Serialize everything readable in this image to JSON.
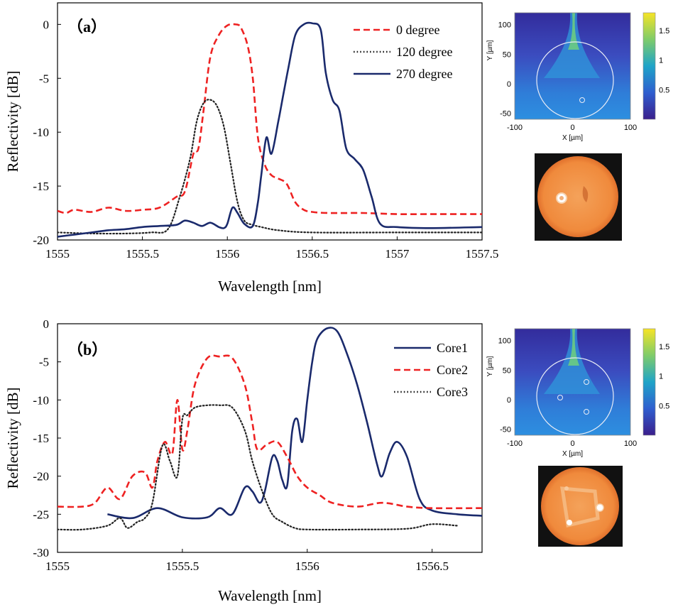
{
  "chart_data": [
    {
      "id": "a",
      "type": "line",
      "panel_label": "（a）",
      "xlabel": "Wavelength  [nm]",
      "ylabel": "Reflectivity [dB]",
      "xlim": [
        1555,
        1557.5
      ],
      "ylim": [
        -20,
        2
      ],
      "xticks": [
        1555,
        1555.5,
        1556,
        1556.5,
        1557,
        1557.5
      ],
      "xtick_labels": [
        "1555",
        "1555.5",
        "1556",
        "1556.5",
        "1557",
        "1557.5"
      ],
      "yticks": [
        0,
        -5,
        -10,
        -15,
        -20
      ],
      "ytick_labels": [
        "0",
        "-5",
        "-10",
        "-15",
        "-20"
      ],
      "legend_position": "top-right",
      "series": [
        {
          "name": "0 degree",
          "style": "dashed",
          "color": "#ee2222",
          "x": [
            1555,
            1555.05,
            1555.1,
            1555.2,
            1555.3,
            1555.4,
            1555.5,
            1555.6,
            1555.7,
            1555.75,
            1555.8,
            1555.83,
            1555.86,
            1555.9,
            1555.95,
            1556.0,
            1556.05,
            1556.08,
            1556.12,
            1556.15,
            1556.18,
            1556.22,
            1556.26,
            1556.3,
            1556.35,
            1556.4,
            1556.45,
            1556.5,
            1556.6,
            1556.8,
            1557,
            1557.2,
            1557.5
          ],
          "y": [
            -17.3,
            -17.5,
            -17.2,
            -17.4,
            -17.0,
            -17.3,
            -17.2,
            -17.0,
            -16.0,
            -15.5,
            -12.0,
            -11.5,
            -8.0,
            -3.0,
            -1.0,
            -0.1,
            0.0,
            -0.3,
            -2.0,
            -5.0,
            -10.5,
            -13.0,
            -14.0,
            -14.3,
            -14.8,
            -16.5,
            -17.2,
            -17.4,
            -17.5,
            -17.5,
            -17.6,
            -17.6,
            -17.6
          ]
        },
        {
          "name": "120 degree",
          "style": "dotted",
          "color": "#222222",
          "x": [
            1555,
            1555.2,
            1555.4,
            1555.55,
            1555.65,
            1555.72,
            1555.78,
            1555.82,
            1555.86,
            1555.9,
            1555.94,
            1555.98,
            1556.02,
            1556.06,
            1556.1,
            1556.15,
            1556.2,
            1556.3,
            1556.5,
            1557,
            1557.5
          ],
          "y": [
            -19.3,
            -19.4,
            -19.4,
            -19.3,
            -19.0,
            -16.0,
            -12.5,
            -9.0,
            -7.3,
            -7.0,
            -7.6,
            -9.5,
            -13.0,
            -16.5,
            -18.2,
            -18.6,
            -18.8,
            -19.1,
            -19.3,
            -19.3,
            -19.3
          ]
        },
        {
          "name": "270 degree",
          "style": "solid",
          "color": "#1a2a6c",
          "x": [
            1555,
            1555.1,
            1555.2,
            1555.3,
            1555.4,
            1555.5,
            1555.6,
            1555.7,
            1555.75,
            1555.8,
            1555.85,
            1555.9,
            1555.95,
            1555.98,
            1556.0,
            1556.03,
            1556.06,
            1556.1,
            1556.15,
            1556.18,
            1556.2,
            1556.23,
            1556.26,
            1556.3,
            1556.33,
            1556.36,
            1556.4,
            1556.45,
            1556.5,
            1556.55,
            1556.58,
            1556.62,
            1556.66,
            1556.7,
            1556.75,
            1556.8,
            1556.85,
            1556.9,
            1557,
            1557.2,
            1557.5
          ],
          "y": [
            -19.7,
            -19.5,
            -19.3,
            -19.1,
            -19.0,
            -18.8,
            -18.7,
            -18.6,
            -18.2,
            -18.4,
            -18.7,
            -18.4,
            -18.8,
            -18.9,
            -18.5,
            -17.0,
            -17.5,
            -18.5,
            -18.7,
            -16.5,
            -14.0,
            -10.5,
            -12.0,
            -9.0,
            -6.5,
            -4.0,
            -1.0,
            0.0,
            0.1,
            -0.5,
            -4.5,
            -7.0,
            -8.0,
            -11.5,
            -12.5,
            -13.5,
            -16.0,
            -18.5,
            -18.8,
            -18.9,
            -18.8
          ]
        }
      ]
    },
    {
      "id": "b",
      "type": "line",
      "panel_label": "（b）",
      "xlabel": "Wavelength  [nm]",
      "ylabel": "Reflectivity [dB]",
      "xlim": [
        1555,
        1556.7
      ],
      "ylim": [
        -30,
        0
      ],
      "xticks": [
        1555,
        1555.5,
        1556,
        1556.5
      ],
      "xtick_labels": [
        "1555",
        "1555.5",
        "1556",
        "1556.5"
      ],
      "yticks": [
        0,
        -5,
        -10,
        -15,
        -20,
        -25,
        -30
      ],
      "ytick_labels": [
        "0",
        "-5",
        "-10",
        "-15",
        "-20",
        "-25",
        "-30"
      ],
      "legend_position": "top-right",
      "series": [
        {
          "name": "Core1",
          "style": "solid",
          "color": "#1a2a6c",
          "x": [
            1555.2,
            1555.3,
            1555.4,
            1555.5,
            1555.6,
            1555.65,
            1555.7,
            1555.75,
            1555.78,
            1555.81,
            1555.83,
            1555.86,
            1555.88,
            1555.9,
            1555.92,
            1555.94,
            1555.96,
            1555.98,
            1556.0,
            1556.02,
            1556.04,
            1556.08,
            1556.12,
            1556.16,
            1556.2,
            1556.24,
            1556.28,
            1556.3,
            1556.33,
            1556.36,
            1556.4,
            1556.45,
            1556.5,
            1556.6,
            1556.7
          ],
          "y": [
            -25.0,
            -25.5,
            -24.2,
            -25.4,
            -25.4,
            -24.2,
            -25.0,
            -21.5,
            -22.0,
            -23.5,
            -22.0,
            -17.5,
            -18.0,
            -20.5,
            -21.2,
            -14.0,
            -12.5,
            -15.5,
            -10.0,
            -5.0,
            -2.0,
            -0.6,
            -1.0,
            -4.0,
            -8.0,
            -13.0,
            -18.5,
            -20.0,
            -17.0,
            -15.5,
            -17.5,
            -23.0,
            -24.5,
            -25.0,
            -25.2
          ]
        },
        {
          "name": "Core2",
          "style": "dashed",
          "color": "#ee2222",
          "x": [
            1555,
            1555.1,
            1555.15,
            1555.2,
            1555.25,
            1555.3,
            1555.35,
            1555.38,
            1555.4,
            1555.43,
            1555.46,
            1555.48,
            1555.5,
            1555.52,
            1555.55,
            1555.6,
            1555.65,
            1555.7,
            1555.75,
            1555.78,
            1555.8,
            1555.84,
            1555.88,
            1555.92,
            1555.96,
            1556.0,
            1556.05,
            1556.1,
            1556.2,
            1556.3,
            1556.4,
            1556.5,
            1556.7
          ],
          "y": [
            -24.0,
            -24.0,
            -23.5,
            -21.5,
            -23.0,
            -20.0,
            -19.5,
            -21.5,
            -18.0,
            -15.5,
            -17.0,
            -10.0,
            -16.5,
            -14.0,
            -8.0,
            -4.5,
            -4.3,
            -4.5,
            -8.0,
            -13.0,
            -16.5,
            -15.8,
            -15.5,
            -17.5,
            -20.0,
            -21.5,
            -22.5,
            -23.5,
            -24.0,
            -23.5,
            -24.0,
            -24.2,
            -24.2
          ]
        },
        {
          "name": "Core3",
          "style": "dotted",
          "color": "#222222",
          "x": [
            1555,
            1555.1,
            1555.2,
            1555.25,
            1555.28,
            1555.32,
            1555.35,
            1555.38,
            1555.42,
            1555.45,
            1555.48,
            1555.5,
            1555.52,
            1555.55,
            1555.6,
            1555.65,
            1555.7,
            1555.75,
            1555.78,
            1555.82,
            1555.86,
            1555.9,
            1555.95,
            1556.0,
            1556.2,
            1556.4,
            1556.5,
            1556.6
          ],
          "y": [
            -27.0,
            -27.0,
            -26.5,
            -25.5,
            -26.8,
            -26.0,
            -25.5,
            -23.5,
            -16.0,
            -18.0,
            -20.0,
            -12.5,
            -12.0,
            -11.0,
            -10.7,
            -10.7,
            -11.0,
            -14.0,
            -18.0,
            -22.0,
            -25.0,
            -26.0,
            -26.8,
            -27.0,
            -27.0,
            -26.9,
            -26.3,
            -26.5
          ]
        }
      ]
    },
    {
      "id": "a-inset",
      "type": "heatmap",
      "xlabel": "X [µm]",
      "ylabel": "Y [µm]",
      "xlim": [
        -100,
        100
      ],
      "ylim": [
        -60,
        120
      ],
      "xtick_labels": [
        "-100",
        "0",
        "100"
      ],
      "ytick_labels": [
        "100",
        "50",
        "0",
        "-50"
      ],
      "colorbar_labels": [
        "1.5",
        "1",
        "0.5"
      ],
      "colorbar_range": [
        0,
        1.8
      ]
    },
    {
      "id": "b-inset",
      "type": "heatmap",
      "xlabel": "X [µm]",
      "ylabel": "Y [µm]",
      "xlim": [
        -100,
        100
      ],
      "ylim": [
        -60,
        120
      ],
      "xtick_labels": [
        "-100",
        "0",
        "100"
      ],
      "ytick_labels": [
        "100",
        "50",
        "0",
        "-50"
      ],
      "colorbar_labels": [
        "1.5",
        "1",
        "0.5"
      ],
      "colorbar_range": [
        0,
        1.8
      ]
    }
  ]
}
